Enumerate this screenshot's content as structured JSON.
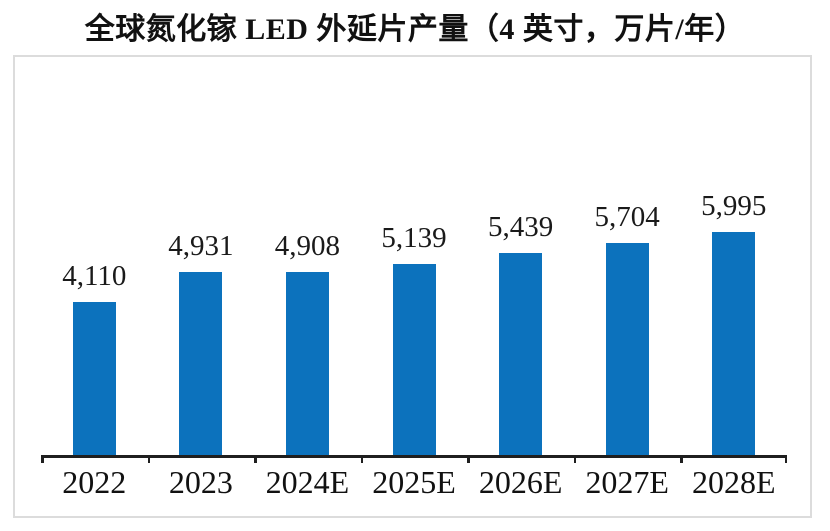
{
  "title": "全球氮化镓 LED 外延片产量（4 英寸，万片/年）",
  "chart_data": {
    "type": "bar",
    "title": "全球氮化镓 LED 外延片产量（4 英寸，万片/年）",
    "categories": [
      "2022",
      "2023",
      "2024E",
      "2025E",
      "2026E",
      "2027E",
      "2028E"
    ],
    "values": [
      4110,
      4931,
      4908,
      5139,
      5439,
      5704,
      5995
    ],
    "data_labels": [
      "4,110",
      "4,931",
      "4,908",
      "5,139",
      "5,439",
      "5,704",
      "5,995"
    ],
    "xlabel": "",
    "ylabel": "",
    "ylim": [
      0,
      10700
    ],
    "grid": false,
    "legend": false,
    "y_axis_visible": false,
    "x_axis_visible": true
  },
  "colors": {
    "bar": "#0C72BD",
    "plot_border": "#DCDCDC",
    "axis_line": "#1F1F1F",
    "text": "#111111",
    "background": "#FFFFFF"
  }
}
